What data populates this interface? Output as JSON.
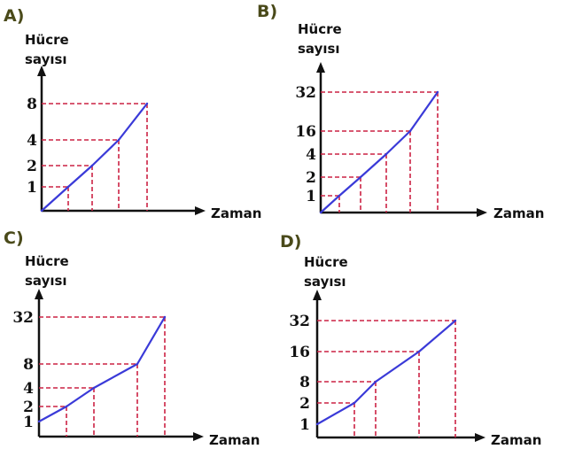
{
  "chart_data": [
    {
      "type": "line",
      "option": "A)",
      "ylabel_line1": "Hücre",
      "ylabel_line2": "sayısı",
      "xlabel": "Zaman",
      "y_ticks": [
        "1",
        "2",
        "4",
        "8"
      ],
      "x": [
        0,
        1,
        2,
        3,
        4
      ],
      "values": [
        0,
        1,
        2,
        4,
        8
      ]
    },
    {
      "type": "line",
      "option": "B)",
      "ylabel_line1": "Hücre",
      "ylabel_line2": "sayısı",
      "xlabel": "Zaman",
      "y_ticks": [
        "1",
        "2",
        "4",
        "16",
        "32"
      ],
      "x": [
        0,
        1,
        2,
        3,
        4,
        5
      ],
      "values": [
        0,
        1,
        2,
        4,
        16,
        32
      ]
    },
    {
      "type": "line",
      "option": "C)",
      "ylabel_line1": "Hücre",
      "ylabel_line2": "sayısı",
      "xlabel": "Zaman",
      "y_ticks": [
        "1",
        "2",
        "4",
        "8",
        "32"
      ],
      "x": [
        0,
        1,
        2,
        3,
        4
      ],
      "values": [
        1,
        2,
        4,
        8,
        32
      ]
    },
    {
      "type": "line",
      "option": "D)",
      "ylabel_line1": "Hücre",
      "ylabel_line2": "sayısı",
      "xlabel": "Zaman",
      "y_ticks": [
        "1",
        "2",
        "8",
        "16",
        "32"
      ],
      "x": [
        0,
        1,
        2,
        3,
        4
      ],
      "values": [
        1,
        2,
        8,
        16,
        32
      ]
    }
  ]
}
